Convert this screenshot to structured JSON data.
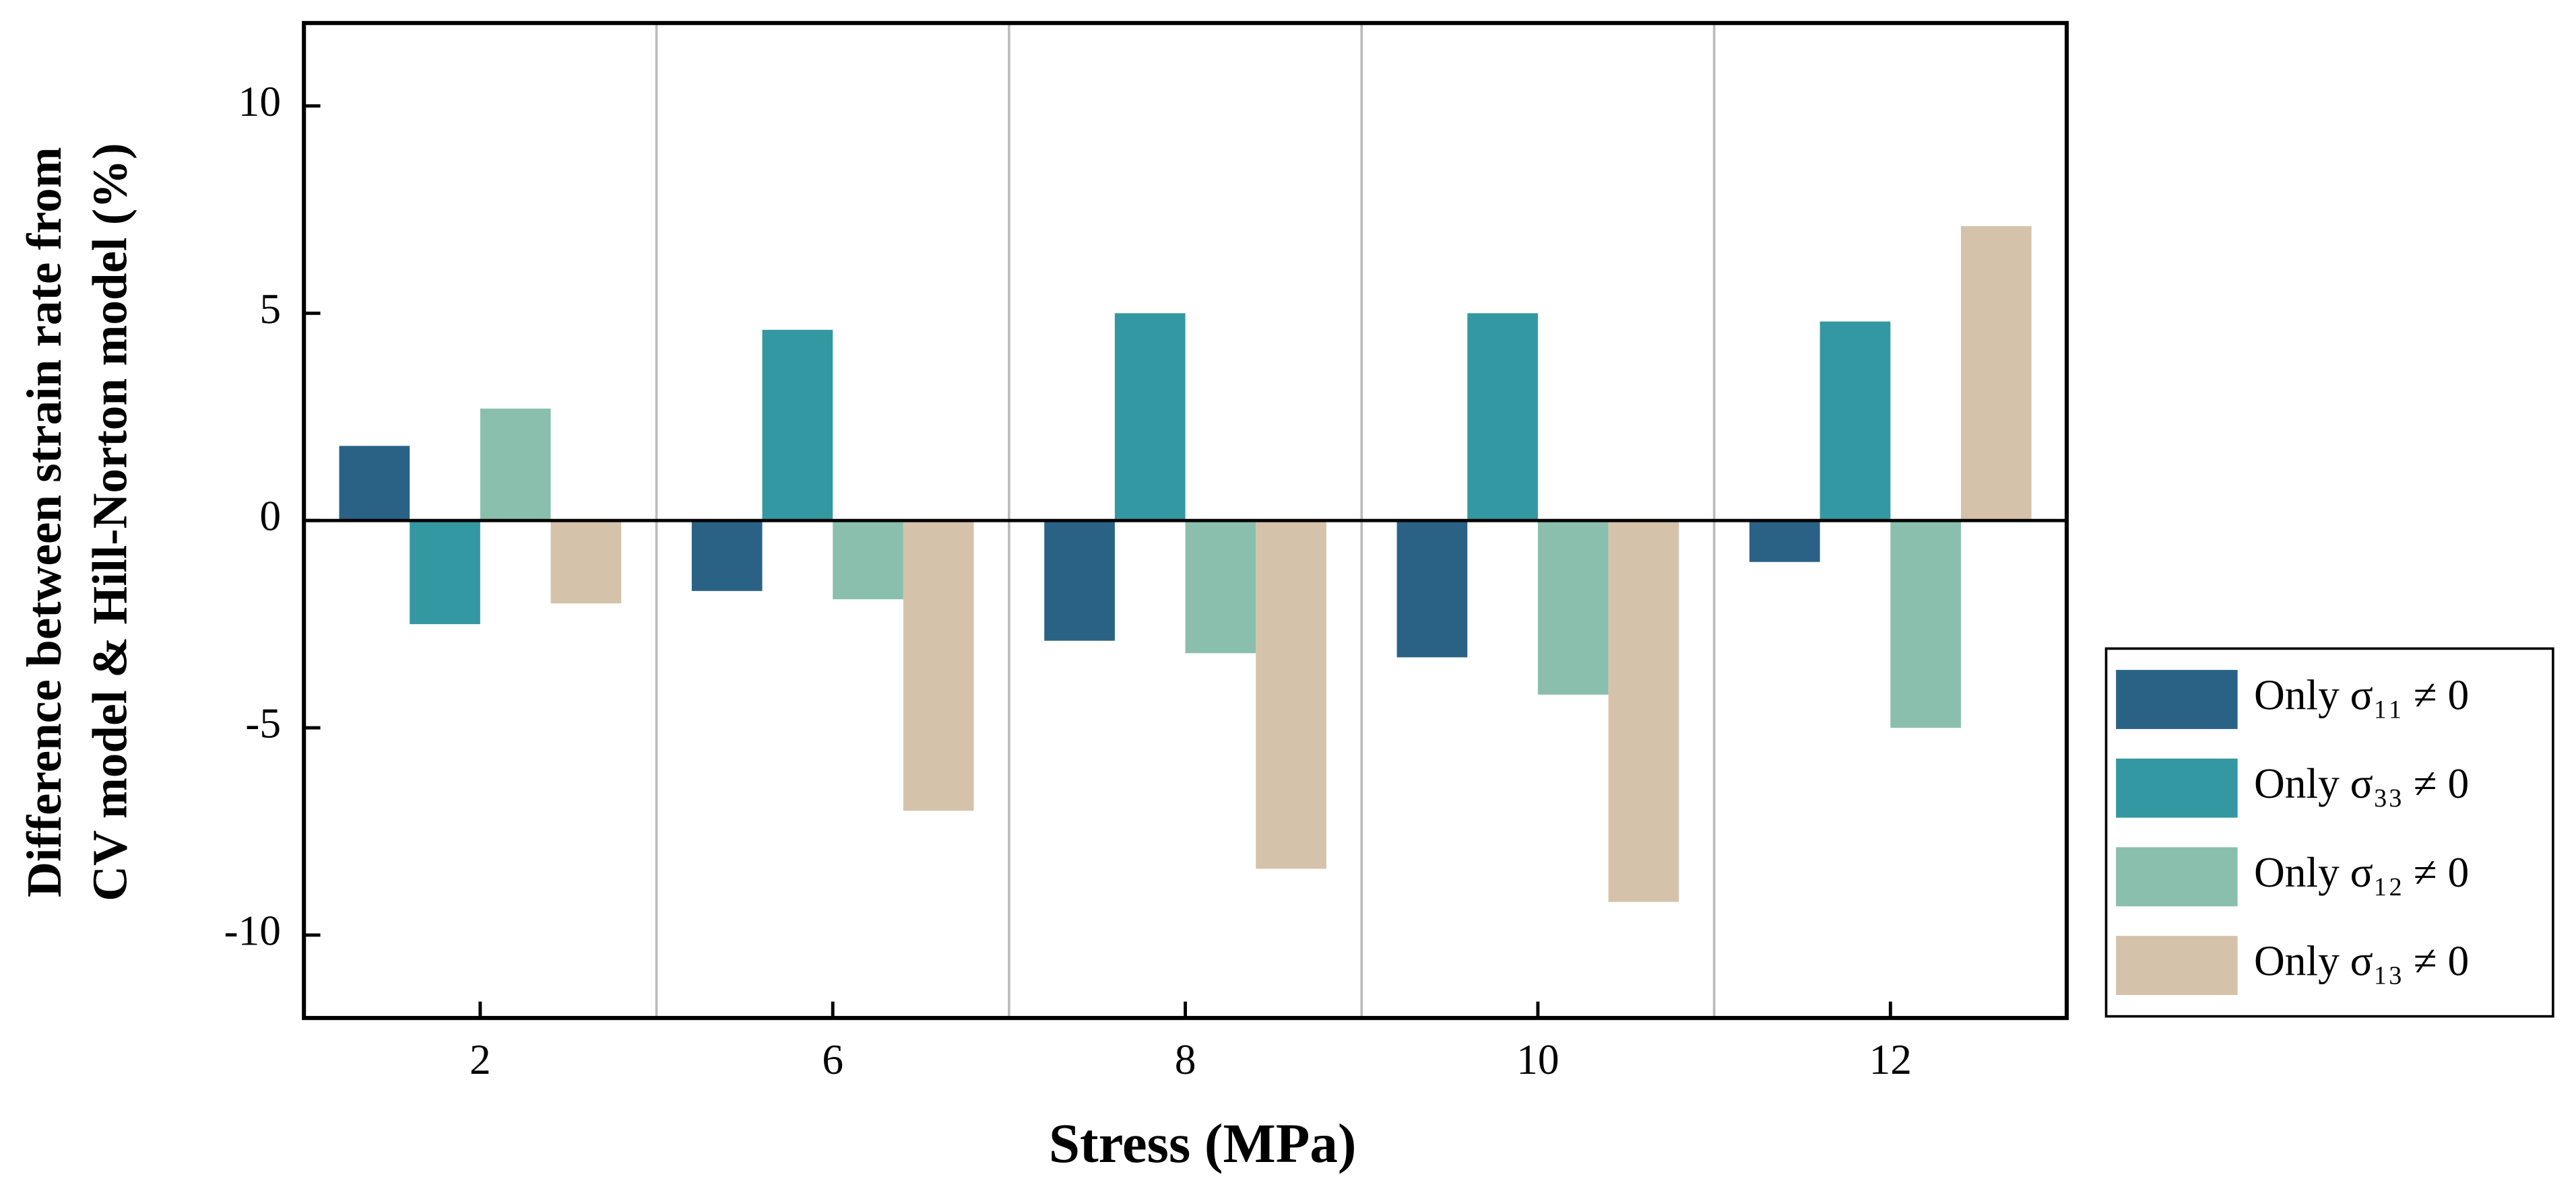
{
  "chart_data": {
    "type": "bar",
    "xlabel": "Stress (MPa)",
    "ylabel": [
      "Difference between strain rate from",
      "CV model & Hill-Norton model (%)"
    ],
    "categories": [
      "2",
      "6",
      "8",
      "10",
      "12"
    ],
    "series": [
      {
        "name": "Only σ₁₁ ≠ 0",
        "color": "#2a6286",
        "values": [
          1.8,
          -1.7,
          -2.9,
          -3.3,
          -1.0
        ]
      },
      {
        "name": "Only σ₃₃ ≠ 0",
        "color": "#3398a2",
        "values": [
          -2.5,
          4.6,
          5.0,
          5.0,
          4.8
        ]
      },
      {
        "name": "Only σ₁₂ ≠ 0",
        "color": "#8abfae",
        "values": [
          2.7,
          -1.9,
          -3.2,
          -4.2,
          -5.0
        ]
      },
      {
        "name": "Only σ₁₃ ≠ 0",
        "color": "#d4c3aa",
        "values": [
          -2.0,
          -7.0,
          -8.4,
          -9.2,
          7.1
        ]
      }
    ],
    "ylim": [
      -12,
      12
    ],
    "yticks": [
      -10,
      -5,
      0,
      5,
      10
    ],
    "legend": "right"
  }
}
